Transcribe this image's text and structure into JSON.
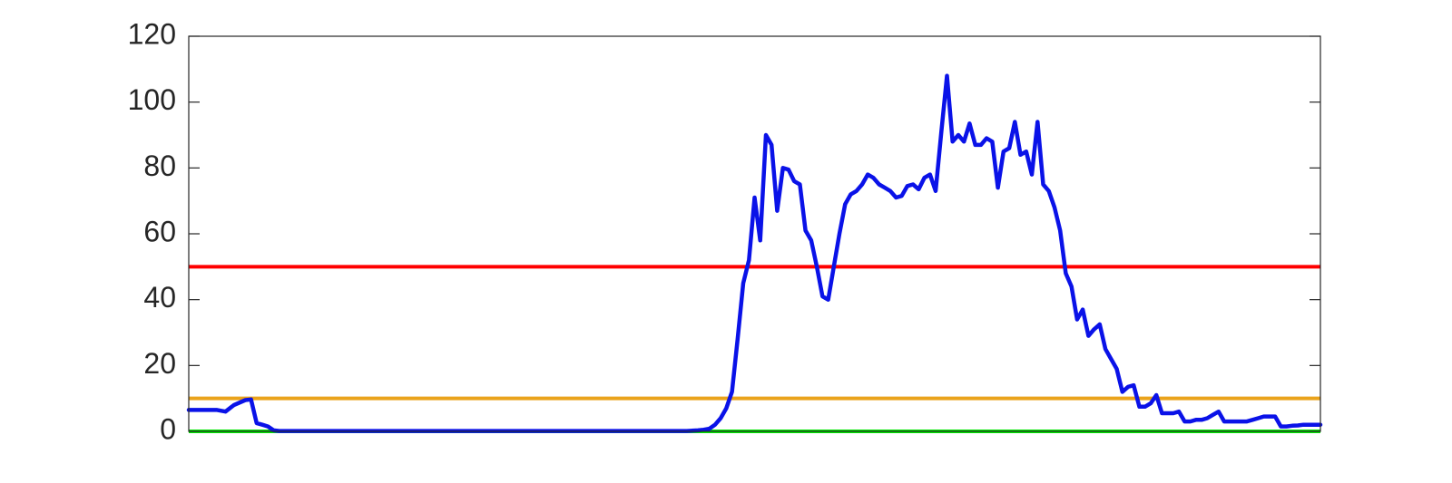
{
  "chart_data": {
    "type": "line",
    "title": "",
    "xlabel": "",
    "ylabel": "",
    "xlim": [
      0,
      200
    ],
    "ylim": [
      0,
      120
    ],
    "yticks": [
      0,
      20,
      40,
      60,
      80,
      100,
      120
    ],
    "ytick_labels": [
      "0",
      "20",
      "40",
      "60",
      "80",
      "100",
      "120"
    ],
    "grid": false,
    "legend": "none",
    "reference_lines": [
      {
        "y": 50,
        "color": "#ff0000"
      },
      {
        "y": 10,
        "color": "#eaa31b"
      },
      {
        "y": 0,
        "color": "#00e600"
      }
    ],
    "series": [
      {
        "color": "#0a12e8",
        "x": [
          0,
          5,
          6.5,
          8,
          10,
          11,
          12,
          13,
          14,
          15,
          16,
          18,
          20,
          50,
          80,
          88,
          90,
          91,
          92,
          93,
          94,
          95,
          96,
          97,
          98,
          99,
          100,
          101,
          102,
          103,
          104,
          105,
          106,
          107,
          108,
          109,
          110,
          111,
          112,
          113,
          114,
          115,
          116,
          117,
          118,
          119,
          120,
          121,
          122,
          123,
          124,
          125,
          126,
          127,
          128,
          129,
          130,
          131,
          132,
          133,
          134,
          135,
          136,
          137,
          138,
          139,
          140,
          141,
          142,
          143,
          144,
          145,
          146,
          147,
          148,
          149,
          150,
          151,
          152,
          153,
          154,
          155,
          156,
          157,
          158,
          159,
          160,
          161,
          162,
          163,
          164,
          165,
          166,
          167,
          168,
          169,
          170,
          171,
          172,
          173,
          174,
          175,
          176,
          177,
          178,
          179,
          180,
          181,
          182,
          183,
          184,
          185,
          186,
          187,
          188,
          189,
          190,
          191,
          192,
          193,
          194,
          195,
          196,
          197,
          198,
          199,
          200
        ],
        "values": [
          6.5,
          6.5,
          6,
          8,
          9.5,
          9.7,
          2.5,
          2,
          1.5,
          0.3,
          0.1,
          0.1,
          0.1,
          0.1,
          0.1,
          0.1,
          0.3,
          0.5,
          0.8,
          2,
          4,
          7,
          12,
          28,
          45,
          52,
          71,
          58,
          90,
          87,
          67,
          80,
          79.5,
          76,
          75,
          61,
          58,
          50,
          41,
          40,
          50,
          60,
          69,
          72,
          73,
          75,
          78,
          77,
          75,
          74,
          73,
          71,
          71.5,
          74.5,
          75,
          73.5,
          77,
          78,
          73,
          91,
          108,
          88,
          90,
          88,
          93.5,
          87,
          87,
          89,
          88,
          74,
          85,
          86,
          94,
          84,
          85,
          78,
          94,
          75,
          73,
          68,
          61,
          48,
          44,
          34,
          37,
          29,
          31,
          32.5,
          25,
          22,
          19,
          12,
          13.5,
          14,
          7.5,
          7.5,
          8.5,
          11,
          5.5,
          5.5,
          5.5,
          6,
          3,
          3,
          3.5,
          3.5,
          4,
          5,
          6,
          3,
          3,
          3,
          3,
          3,
          3.5,
          4,
          4.5,
          4.5,
          4.5,
          1.5,
          1.5,
          1.7,
          1.8,
          2,
          2,
          2,
          2
        ]
      }
    ]
  }
}
